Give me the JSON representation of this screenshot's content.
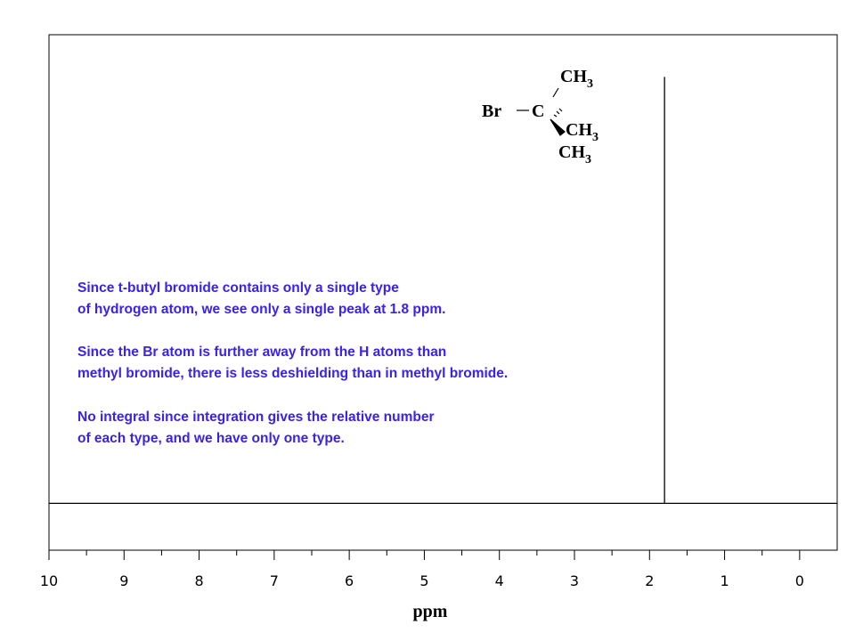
{
  "chart_data": {
    "type": "line",
    "xlabel": "ppm",
    "x": [
      10,
      1.8,
      1.8,
      1.8,
      -0.5
    ],
    "values": [
      0,
      0,
      0.91,
      0,
      0
    ],
    "color": "#000000",
    "xlim": [
      10,
      -0.5
    ],
    "ylim": [
      -0.1,
      1
    ],
    "xticks": [
      10,
      9,
      8,
      7,
      6,
      5,
      4,
      3,
      2,
      1,
      0
    ],
    "xminor_ticks": [
      9.5,
      8.5,
      7.5,
      6.5,
      5.5,
      4.5,
      3.5,
      2.5,
      1.5,
      0.5
    ],
    "structure": [
      {
        "text": "Br"
      },
      {
        "text": "C"
      },
      {
        "text": "CH",
        "sub": "3"
      },
      {
        "text": "CH",
        "sub": "3"
      },
      {
        "text": "CH",
        "sub": "3"
      }
    ],
    "annotation_color": "#3a22e6",
    "annotations": [
      [
        "Since t-butyl bromide contains only a single type",
        "of hydrogen atom, we see only a single peak at 1.8 ppm."
      ],
      [
        "Since the Br atom is further away from the H atoms than",
        "methyl bromide, there is less deshielding than in methyl bromide."
      ],
      [
        "No integral since integration gives the relative number",
        "of each type, and we have only one type."
      ]
    ]
  }
}
